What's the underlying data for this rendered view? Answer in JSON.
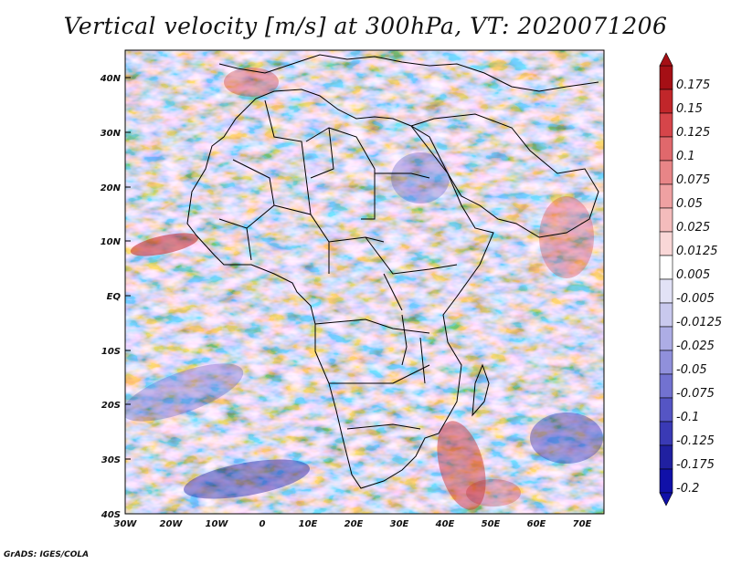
{
  "title": "Vertical velocity [m/s] at 300hPa, VT: 2020071206",
  "credit": "GrADS: IGES/COLA",
  "map": {
    "lon_range": [
      -30,
      75
    ],
    "lat_range": [
      -40,
      45
    ],
    "lon_ticks": [
      "30W",
      "20W",
      "10W",
      "0",
      "10E",
      "20E",
      "30E",
      "40E",
      "50E",
      "60E",
      "70E"
    ],
    "lat_ticks": [
      "40N",
      "30N",
      "20N",
      "10N",
      "EQ",
      "10S",
      "20S",
      "30S",
      "40S"
    ]
  },
  "colorbar": {
    "levels": [
      "0.175",
      "0.15",
      "0.125",
      "0.1",
      "0.075",
      "0.05",
      "0.025",
      "0.0125",
      "0.005",
      "-0.005",
      "-0.0125",
      "-0.025",
      "-0.05",
      "-0.075",
      "-0.1",
      "-0.125",
      "-0.175",
      "-0.2"
    ],
    "colors": [
      "#a50f15",
      "#c1262a",
      "#d6454a",
      "#e0686c",
      "#e88587",
      "#efa1a2",
      "#f4bcbc",
      "#f9d7d7",
      "#ffffff",
      "#e2e2f6",
      "#c9c9ee",
      "#adadE5",
      "#9090db",
      "#7272d0",
      "#5555c4",
      "#3a3ab5",
      "#2020a0",
      "#1010a8"
    ]
  }
}
